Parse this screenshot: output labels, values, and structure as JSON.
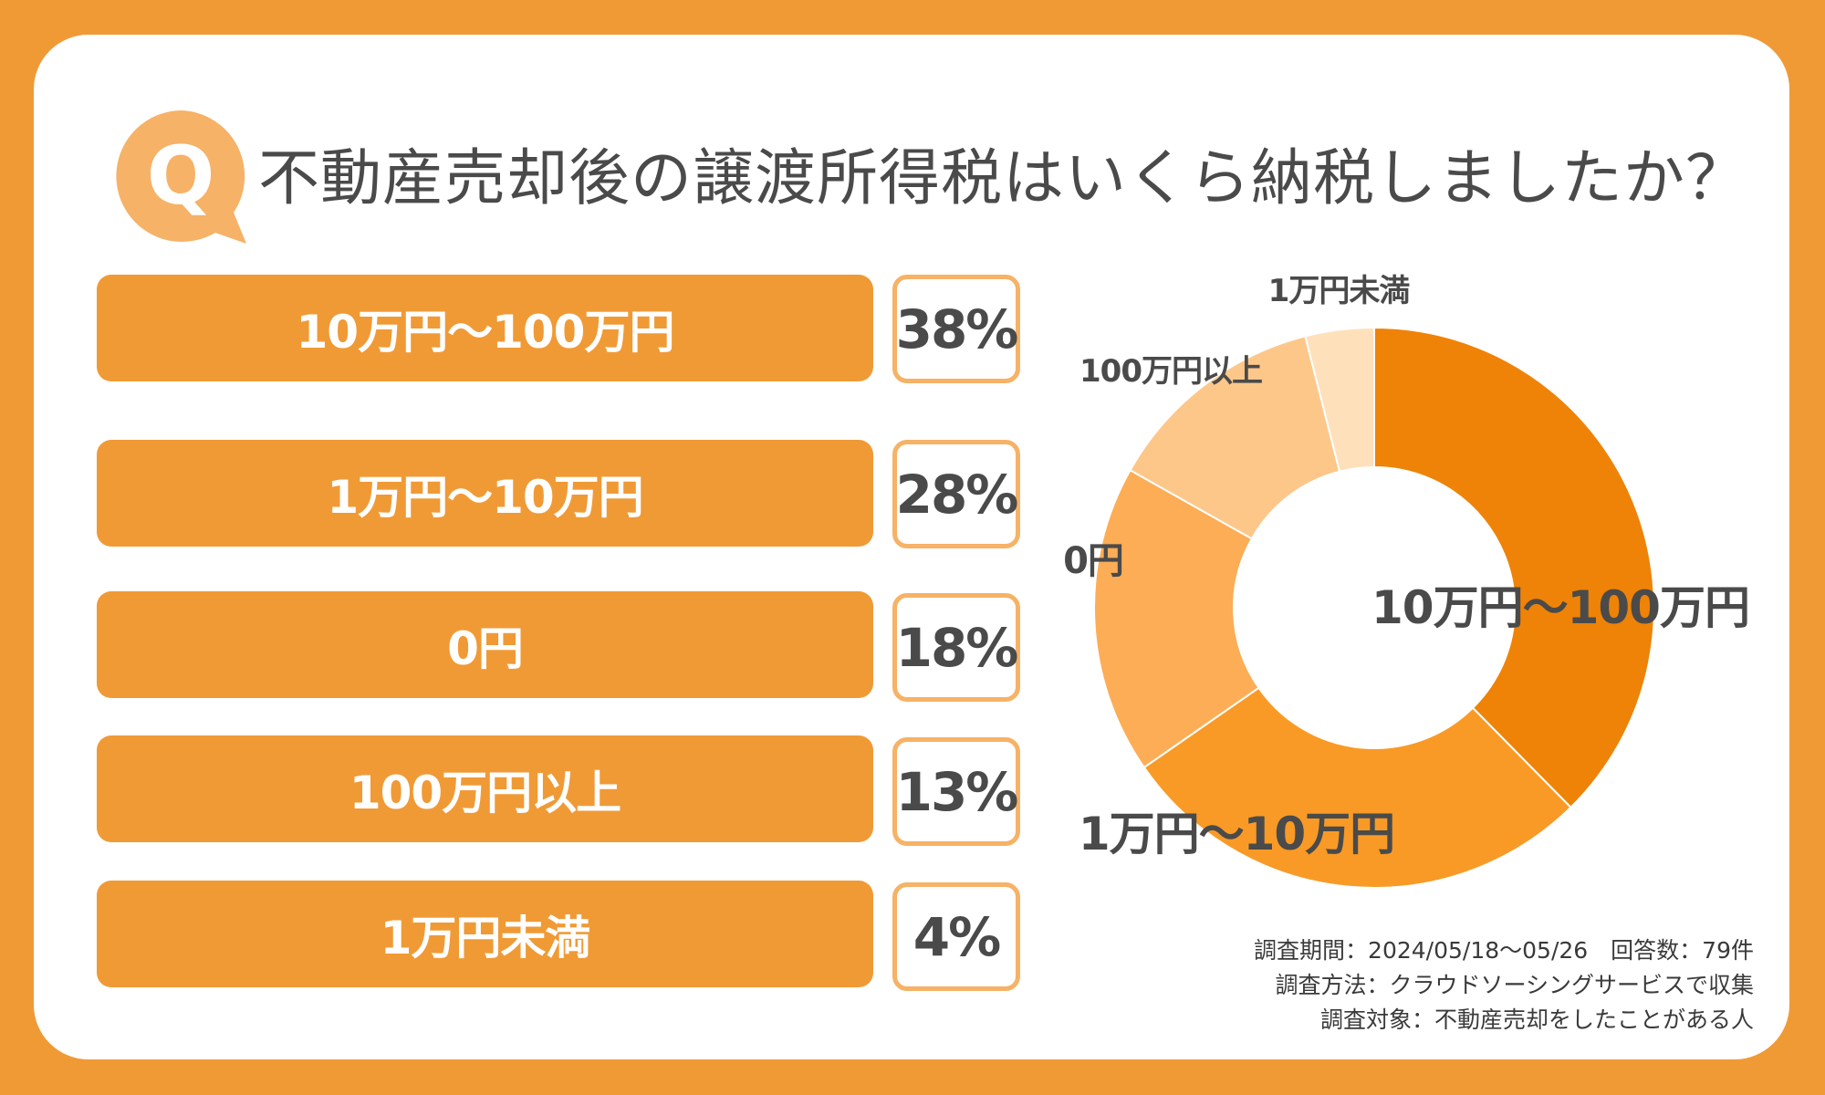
{
  "title": "不動産売却後の譲渡所得税はいくら納税しましたか？",
  "q_badge": "Q",
  "colors": {
    "background": "#F09A36",
    "card": "#FFFFFF",
    "bar": "#F09A36",
    "pct_border": "#F6B266",
    "text_dark": "#4A4A4A"
  },
  "chart_data": {
    "type": "pie",
    "donut": true,
    "categories": [
      "10万円〜100万円",
      "1万円〜10万円",
      "0円",
      "100万円以上",
      "1万円未満"
    ],
    "values": [
      38,
      28,
      18,
      13,
      4
    ],
    "value_labels": [
      "38%",
      "28%",
      "18%",
      "13%",
      "4%"
    ],
    "slice_colors": [
      "#EE8307",
      "#F99A26",
      "#FCAD55",
      "#FDC78A",
      "#FEE0BB"
    ]
  },
  "footer": {
    "line1": "調査期間：2024/05/18〜05/26　回答数：79件",
    "line2": "調査方法：クラウドソーシングサービスで収集",
    "line3": "調査対象：不動産売却をしたことがある人"
  }
}
